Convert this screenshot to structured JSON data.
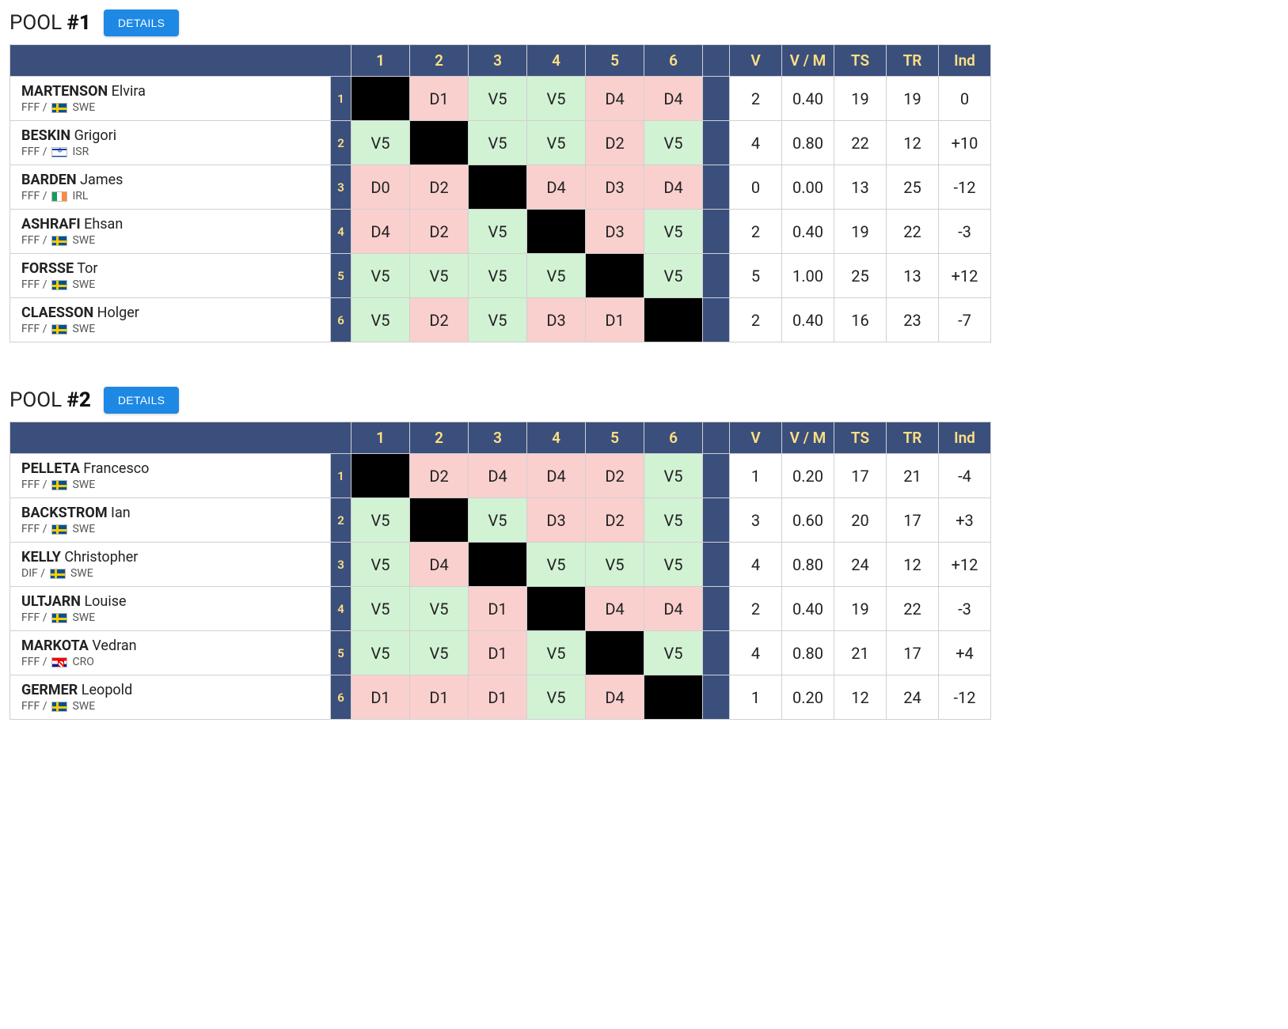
{
  "colors": {
    "header_bg": "#3b4f7d",
    "header_text": "#ffe082",
    "win_bg": "#d2f2d4",
    "loss_bg": "#f9d0ce",
    "self_bg": "#000000",
    "details_btn_bg": "#1e88e5"
  },
  "labels": {
    "details_button": "DETAILS",
    "pool_prefix": "POOL",
    "stat_headers": [
      "V",
      "V / M",
      "TS",
      "TR",
      "Ind"
    ]
  },
  "pools": [
    {
      "number": "#1",
      "fencers": [
        {
          "surname": "MARTENSON",
          "first": "Elvira",
          "club": "FFF",
          "flag": "swe",
          "country_code": "SWE",
          "scores": [
            null,
            "D1",
            "V5",
            "V5",
            "D4",
            "D4"
          ],
          "stats": {
            "V": "2",
            "VM": "0.40",
            "TS": "19",
            "TR": "19",
            "Ind": "0"
          }
        },
        {
          "surname": "BESKIN",
          "first": "Grigori",
          "club": "FFF",
          "flag": "isr",
          "country_code": "ISR",
          "scores": [
            "V5",
            null,
            "V5",
            "V5",
            "D2",
            "V5"
          ],
          "stats": {
            "V": "4",
            "VM": "0.80",
            "TS": "22",
            "TR": "12",
            "Ind": "+10"
          }
        },
        {
          "surname": "BARDEN",
          "first": "James",
          "club": "FFF",
          "flag": "irl",
          "country_code": "IRL",
          "scores": [
            "D0",
            "D2",
            null,
            "D4",
            "D3",
            "D4"
          ],
          "stats": {
            "V": "0",
            "VM": "0.00",
            "TS": "13",
            "TR": "25",
            "Ind": "-12"
          }
        },
        {
          "surname": "ASHRAFI",
          "first": "Ehsan",
          "club": "FFF",
          "flag": "swe",
          "country_code": "SWE",
          "scores": [
            "D4",
            "D2",
            "V5",
            null,
            "D3",
            "V5"
          ],
          "stats": {
            "V": "2",
            "VM": "0.40",
            "TS": "19",
            "TR": "22",
            "Ind": "-3"
          }
        },
        {
          "surname": "FORSSE",
          "first": "Tor",
          "club": "FFF",
          "flag": "swe",
          "country_code": "SWE",
          "scores": [
            "V5",
            "V5",
            "V5",
            "V5",
            null,
            "V5"
          ],
          "stats": {
            "V": "5",
            "VM": "1.00",
            "TS": "25",
            "TR": "13",
            "Ind": "+12"
          }
        },
        {
          "surname": "CLAESSON",
          "first": "Holger",
          "club": "FFF",
          "flag": "swe",
          "country_code": "SWE",
          "scores": [
            "V5",
            "D2",
            "V5",
            "D3",
            "D1",
            null
          ],
          "stats": {
            "V": "2",
            "VM": "0.40",
            "TS": "16",
            "TR": "23",
            "Ind": "-7"
          }
        }
      ]
    },
    {
      "number": "#2",
      "fencers": [
        {
          "surname": "PELLETA",
          "first": "Francesco",
          "club": "FFF",
          "flag": "swe",
          "country_code": "SWE",
          "scores": [
            null,
            "D2",
            "D4",
            "D4",
            "D2",
            "V5"
          ],
          "stats": {
            "V": "1",
            "VM": "0.20",
            "TS": "17",
            "TR": "21",
            "Ind": "-4"
          }
        },
        {
          "surname": "BACKSTROM",
          "first": "Ian",
          "club": "FFF",
          "flag": "swe",
          "country_code": "SWE",
          "scores": [
            "V5",
            null,
            "V5",
            "D3",
            "D2",
            "V5"
          ],
          "stats": {
            "V": "3",
            "VM": "0.60",
            "TS": "20",
            "TR": "17",
            "Ind": "+3"
          }
        },
        {
          "surname": "KELLY",
          "first": "Christopher",
          "club": "DIF",
          "flag": "swe",
          "country_code": "SWE",
          "scores": [
            "V5",
            "D4",
            null,
            "V5",
            "V5",
            "V5"
          ],
          "stats": {
            "V": "4",
            "VM": "0.80",
            "TS": "24",
            "TR": "12",
            "Ind": "+12"
          }
        },
        {
          "surname": "ULTJARN",
          "first": "Louise",
          "club": "FFF",
          "flag": "swe",
          "country_code": "SWE",
          "scores": [
            "V5",
            "V5",
            "D1",
            null,
            "D4",
            "D4"
          ],
          "stats": {
            "V": "2",
            "VM": "0.40",
            "TS": "19",
            "TR": "22",
            "Ind": "-3"
          }
        },
        {
          "surname": "MARKOTA",
          "first": "Vedran",
          "club": "FFF",
          "flag": "cro",
          "country_code": "CRO",
          "scores": [
            "V5",
            "V5",
            "D1",
            "V5",
            null,
            "V5"
          ],
          "stats": {
            "V": "4",
            "VM": "0.80",
            "TS": "21",
            "TR": "17",
            "Ind": "+4"
          }
        },
        {
          "surname": "GERMER",
          "first": "Leopold",
          "club": "FFF",
          "flag": "swe",
          "country_code": "SWE",
          "scores": [
            "D1",
            "D1",
            "D1",
            "V5",
            "D4",
            null
          ],
          "stats": {
            "V": "1",
            "VM": "0.20",
            "TS": "12",
            "TR": "24",
            "Ind": "-12"
          }
        }
      ]
    }
  ]
}
